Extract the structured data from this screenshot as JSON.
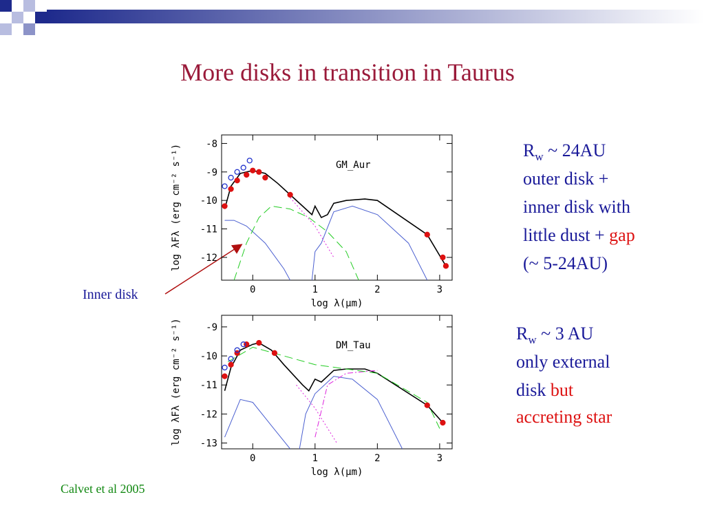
{
  "title": "More disks in transition in Taurus",
  "annotation": "Inner disk",
  "citation": "Calvet et al 2005",
  "note_1": {
    "r": "R",
    "sub": "w",
    "radius": " ~ 24AU",
    "line_2": "outer disk +",
    "line_3": "inner disk with",
    "line_4": "little dust + ",
    "gap": "gap",
    "line_5": "(~ 5-24AU)"
  },
  "note_2": {
    "r": "R",
    "sub": "w",
    "radius": " ~ 3 AU",
    "line_2": "only external",
    "line_3": "disk ",
    "but": "but",
    "line_4": "accreting star"
  },
  "chart_data": [
    {
      "type": "line",
      "label": "GM_Aur",
      "xlabel": "log λ(μm)",
      "ylabel": "log λFλ (erg cm⁻² s⁻¹)",
      "xlim": [
        -0.5,
        3.2
      ],
      "ylim": [
        -12.8,
        -7.7
      ],
      "xticks": [
        0,
        1,
        2,
        3
      ],
      "yticks": [
        -12,
        -11,
        -10,
        -9,
        -8
      ],
      "series": [
        {
          "color": "#000000",
          "style": "solid",
          "x": [
            -0.45,
            -0.35,
            -0.2,
            0,
            0.2,
            0.4,
            0.6,
            0.8,
            0.95,
            1.0,
            1.1,
            1.2,
            1.3,
            1.5,
            1.8,
            2.0,
            2.8,
            3.1
          ],
          "values": [
            -10.3,
            -9.5,
            -9.05,
            -8.95,
            -9.05,
            -9.4,
            -9.8,
            -10.2,
            -10.5,
            -10.2,
            -10.6,
            -10.5,
            -10.1,
            -10.0,
            -9.95,
            -10.0,
            -11.2,
            -12.3
          ]
        },
        {
          "color": "#4a5fd0",
          "style": "solid",
          "x": [
            -0.45,
            -0.3,
            -0.1,
            0.2,
            0.5,
            0.6
          ],
          "values": [
            -10.7,
            -10.7,
            -10.9,
            -11.5,
            -12.4,
            -12.8
          ]
        },
        {
          "color": "#22cc22",
          "style": "dashed",
          "x": [
            -0.3,
            -0.1,
            0.1,
            0.3,
            0.6,
            0.9,
            1.2,
            1.5,
            1.7
          ],
          "values": [
            -12.8,
            -11.5,
            -10.6,
            -10.2,
            -10.3,
            -10.6,
            -11.1,
            -11.8,
            -12.8
          ]
        },
        {
          "color": "#4a5fd0",
          "style": "solid",
          "x": [
            0.95,
            1.0,
            1.1,
            1.3,
            1.6,
            2.0,
            2.5,
            2.8
          ],
          "values": [
            -12.8,
            -11.8,
            -11.5,
            -10.4,
            -10.2,
            -10.5,
            -11.5,
            -12.8
          ]
        },
        {
          "color": "#dd22dd",
          "style": "dotted",
          "x": [
            0.6,
            1.0,
            1.3
          ],
          "values": [
            -9.9,
            -10.9,
            -12.0
          ]
        },
        {
          "color": "#dd1111",
          "style": "points",
          "x": [
            -0.45,
            -0.35,
            -0.25,
            -0.1,
            0,
            0.1,
            0.2,
            0.6,
            2.8,
            3.05,
            3.1
          ],
          "values": [
            -10.2,
            -9.6,
            -9.3,
            -9.1,
            -8.95,
            -9.0,
            -9.2,
            -9.8,
            -11.2,
            -12.0,
            -12.3
          ]
        },
        {
          "color": "#2233cc",
          "style": "open-points",
          "x": [
            -0.45,
            -0.35,
            -0.25,
            -0.15,
            -0.05
          ],
          "values": [
            -9.5,
            -9.2,
            -9.0,
            -8.85,
            -8.6
          ]
        }
      ]
    },
    {
      "type": "line",
      "label": "DM_Tau",
      "xlabel": "log λ(μm)",
      "ylabel": "log λFλ (erg cm⁻² s⁻¹)",
      "xlim": [
        -0.5,
        3.2
      ],
      "ylim": [
        -13.2,
        -8.6
      ],
      "xticks": [
        0,
        1,
        2,
        3
      ],
      "yticks": [
        -13,
        -12,
        -11,
        -10,
        -9
      ],
      "series": [
        {
          "color": "#000000",
          "style": "solid",
          "x": [
            -0.45,
            -0.35,
            -0.2,
            0,
            0.1,
            0.3,
            0.5,
            0.8,
            0.9,
            1.0,
            1.1,
            1.3,
            1.5,
            1.8,
            2.0,
            2.8,
            3.05
          ],
          "values": [
            -11.2,
            -10.4,
            -9.8,
            -9.6,
            -9.55,
            -9.8,
            -10.3,
            -11.0,
            -11.2,
            -10.8,
            -10.9,
            -10.5,
            -10.45,
            -10.45,
            -10.6,
            -11.7,
            -12.3
          ]
        },
        {
          "color": "#4a5fd0",
          "style": "solid",
          "x": [
            -0.45,
            -0.2,
            0,
            0.3,
            0.6
          ],
          "values": [
            -12.8,
            -11.5,
            -11.6,
            -12.4,
            -13.2
          ]
        },
        {
          "color": "#4a5fd0",
          "style": "solid",
          "x": [
            0.75,
            0.85,
            1.0,
            1.3,
            1.6,
            2.0,
            2.4
          ],
          "values": [
            -13.2,
            -12.0,
            -11.3,
            -10.7,
            -10.8,
            -11.5,
            -13.2
          ]
        },
        {
          "color": "#dd22dd",
          "style": "dashdot",
          "x": [
            1.0,
            1.2,
            1.5,
            2.0
          ],
          "values": [
            -12.8,
            -11.0,
            -10.6,
            -10.5
          ]
        },
        {
          "color": "#dd22dd",
          "style": "dotted",
          "x": [
            0.7,
            1.0,
            1.35
          ],
          "values": [
            -11.0,
            -11.8,
            -13.0
          ]
        },
        {
          "color": "#22cc22",
          "style": "dashed",
          "x": [
            -0.4,
            0,
            0.5,
            1.0,
            2.0,
            2.8,
            3.0
          ],
          "values": [
            -10.2,
            -9.7,
            -10.0,
            -10.3,
            -10.6,
            -11.6,
            -12.5
          ]
        },
        {
          "color": "#dd1111",
          "style": "points",
          "x": [
            -0.45,
            -0.35,
            -0.25,
            -0.1,
            0.1,
            0.35,
            2.8,
            3.05
          ],
          "values": [
            -10.7,
            -10.3,
            -9.9,
            -9.6,
            -9.55,
            -9.9,
            -11.7,
            -12.3
          ]
        },
        {
          "color": "#2233cc",
          "style": "open-points",
          "x": [
            -0.45,
            -0.35,
            -0.25,
            -0.15
          ],
          "values": [
            -10.4,
            -10.1,
            -9.8,
            -9.6
          ]
        }
      ]
    }
  ]
}
